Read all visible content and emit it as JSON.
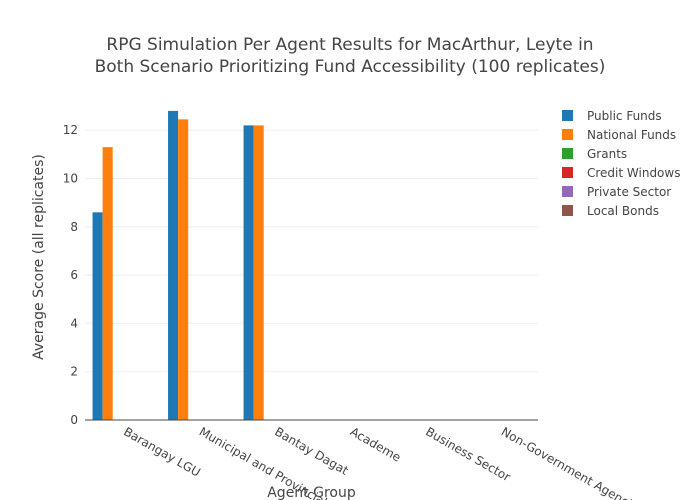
{
  "chart_data": {
    "type": "bar",
    "title_line1": "RPG Simulation Per Agent Results for MacArthur, Leyte in",
    "title_line2": "Both Scenario Prioritizing Fund Accessibility (100 replicates)",
    "xlabel": "Agent Group",
    "ylabel": "Average Score (all replicates)",
    "ylim": [
      0,
      13.5
    ],
    "yticks": [
      0,
      2,
      4,
      6,
      8,
      10,
      12
    ],
    "grid": true,
    "legend_position": "right",
    "categories": [
      "Barangay LGU",
      "Municipal and Provincial",
      "Bantay Dagat",
      "Academe",
      "Business Sector",
      "Non-Government Agencies"
    ],
    "series": [
      {
        "name": "Public Funds",
        "color": "#1f77b4",
        "values": [
          8.6,
          12.8,
          12.2,
          0,
          0,
          0
        ]
      },
      {
        "name": "National Funds",
        "color": "#ff7f0e",
        "values": [
          11.3,
          12.45,
          12.2,
          0,
          0,
          0
        ]
      },
      {
        "name": "Grants",
        "color": "#2ca02c",
        "values": [
          0,
          0,
          0,
          0,
          0,
          0
        ]
      },
      {
        "name": "Credit Windows",
        "color": "#d62728",
        "values": [
          0,
          0,
          0,
          0,
          0,
          0
        ]
      },
      {
        "name": "Private Sector",
        "color": "#9467bd",
        "values": [
          0,
          0,
          0,
          0,
          0,
          0
        ]
      },
      {
        "name": "Local Bonds",
        "color": "#8c564b",
        "values": [
          0,
          0,
          0,
          0,
          0,
          0
        ]
      }
    ]
  }
}
